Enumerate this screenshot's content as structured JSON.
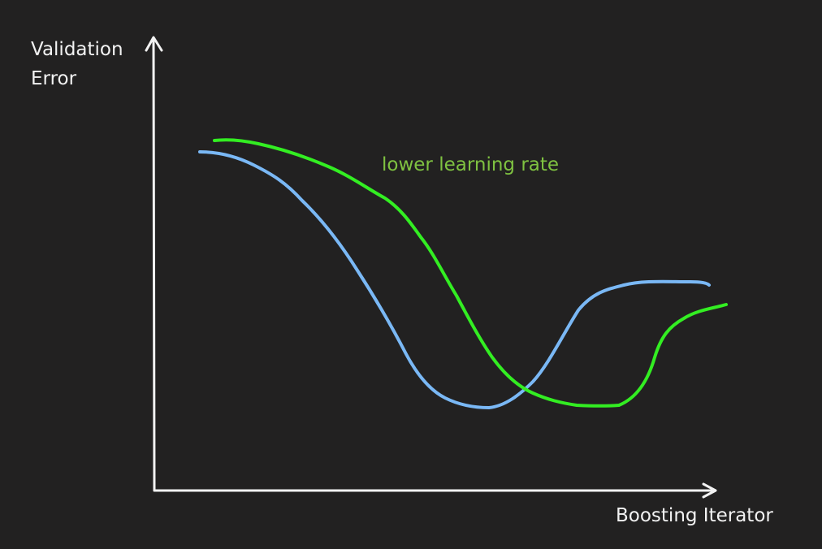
{
  "axes": {
    "y_label": [
      "Validation",
      "Error"
    ],
    "x_label": "Boosting Iterator",
    "color": "#f2f2f2"
  },
  "annotation": {
    "text": "lower learning rate",
    "color": "#7fc241"
  },
  "curves": [
    {
      "id": "default-rate",
      "color": "#7ab8f5"
    },
    {
      "id": "lower-rate",
      "color": "#33ee22"
    }
  ]
}
